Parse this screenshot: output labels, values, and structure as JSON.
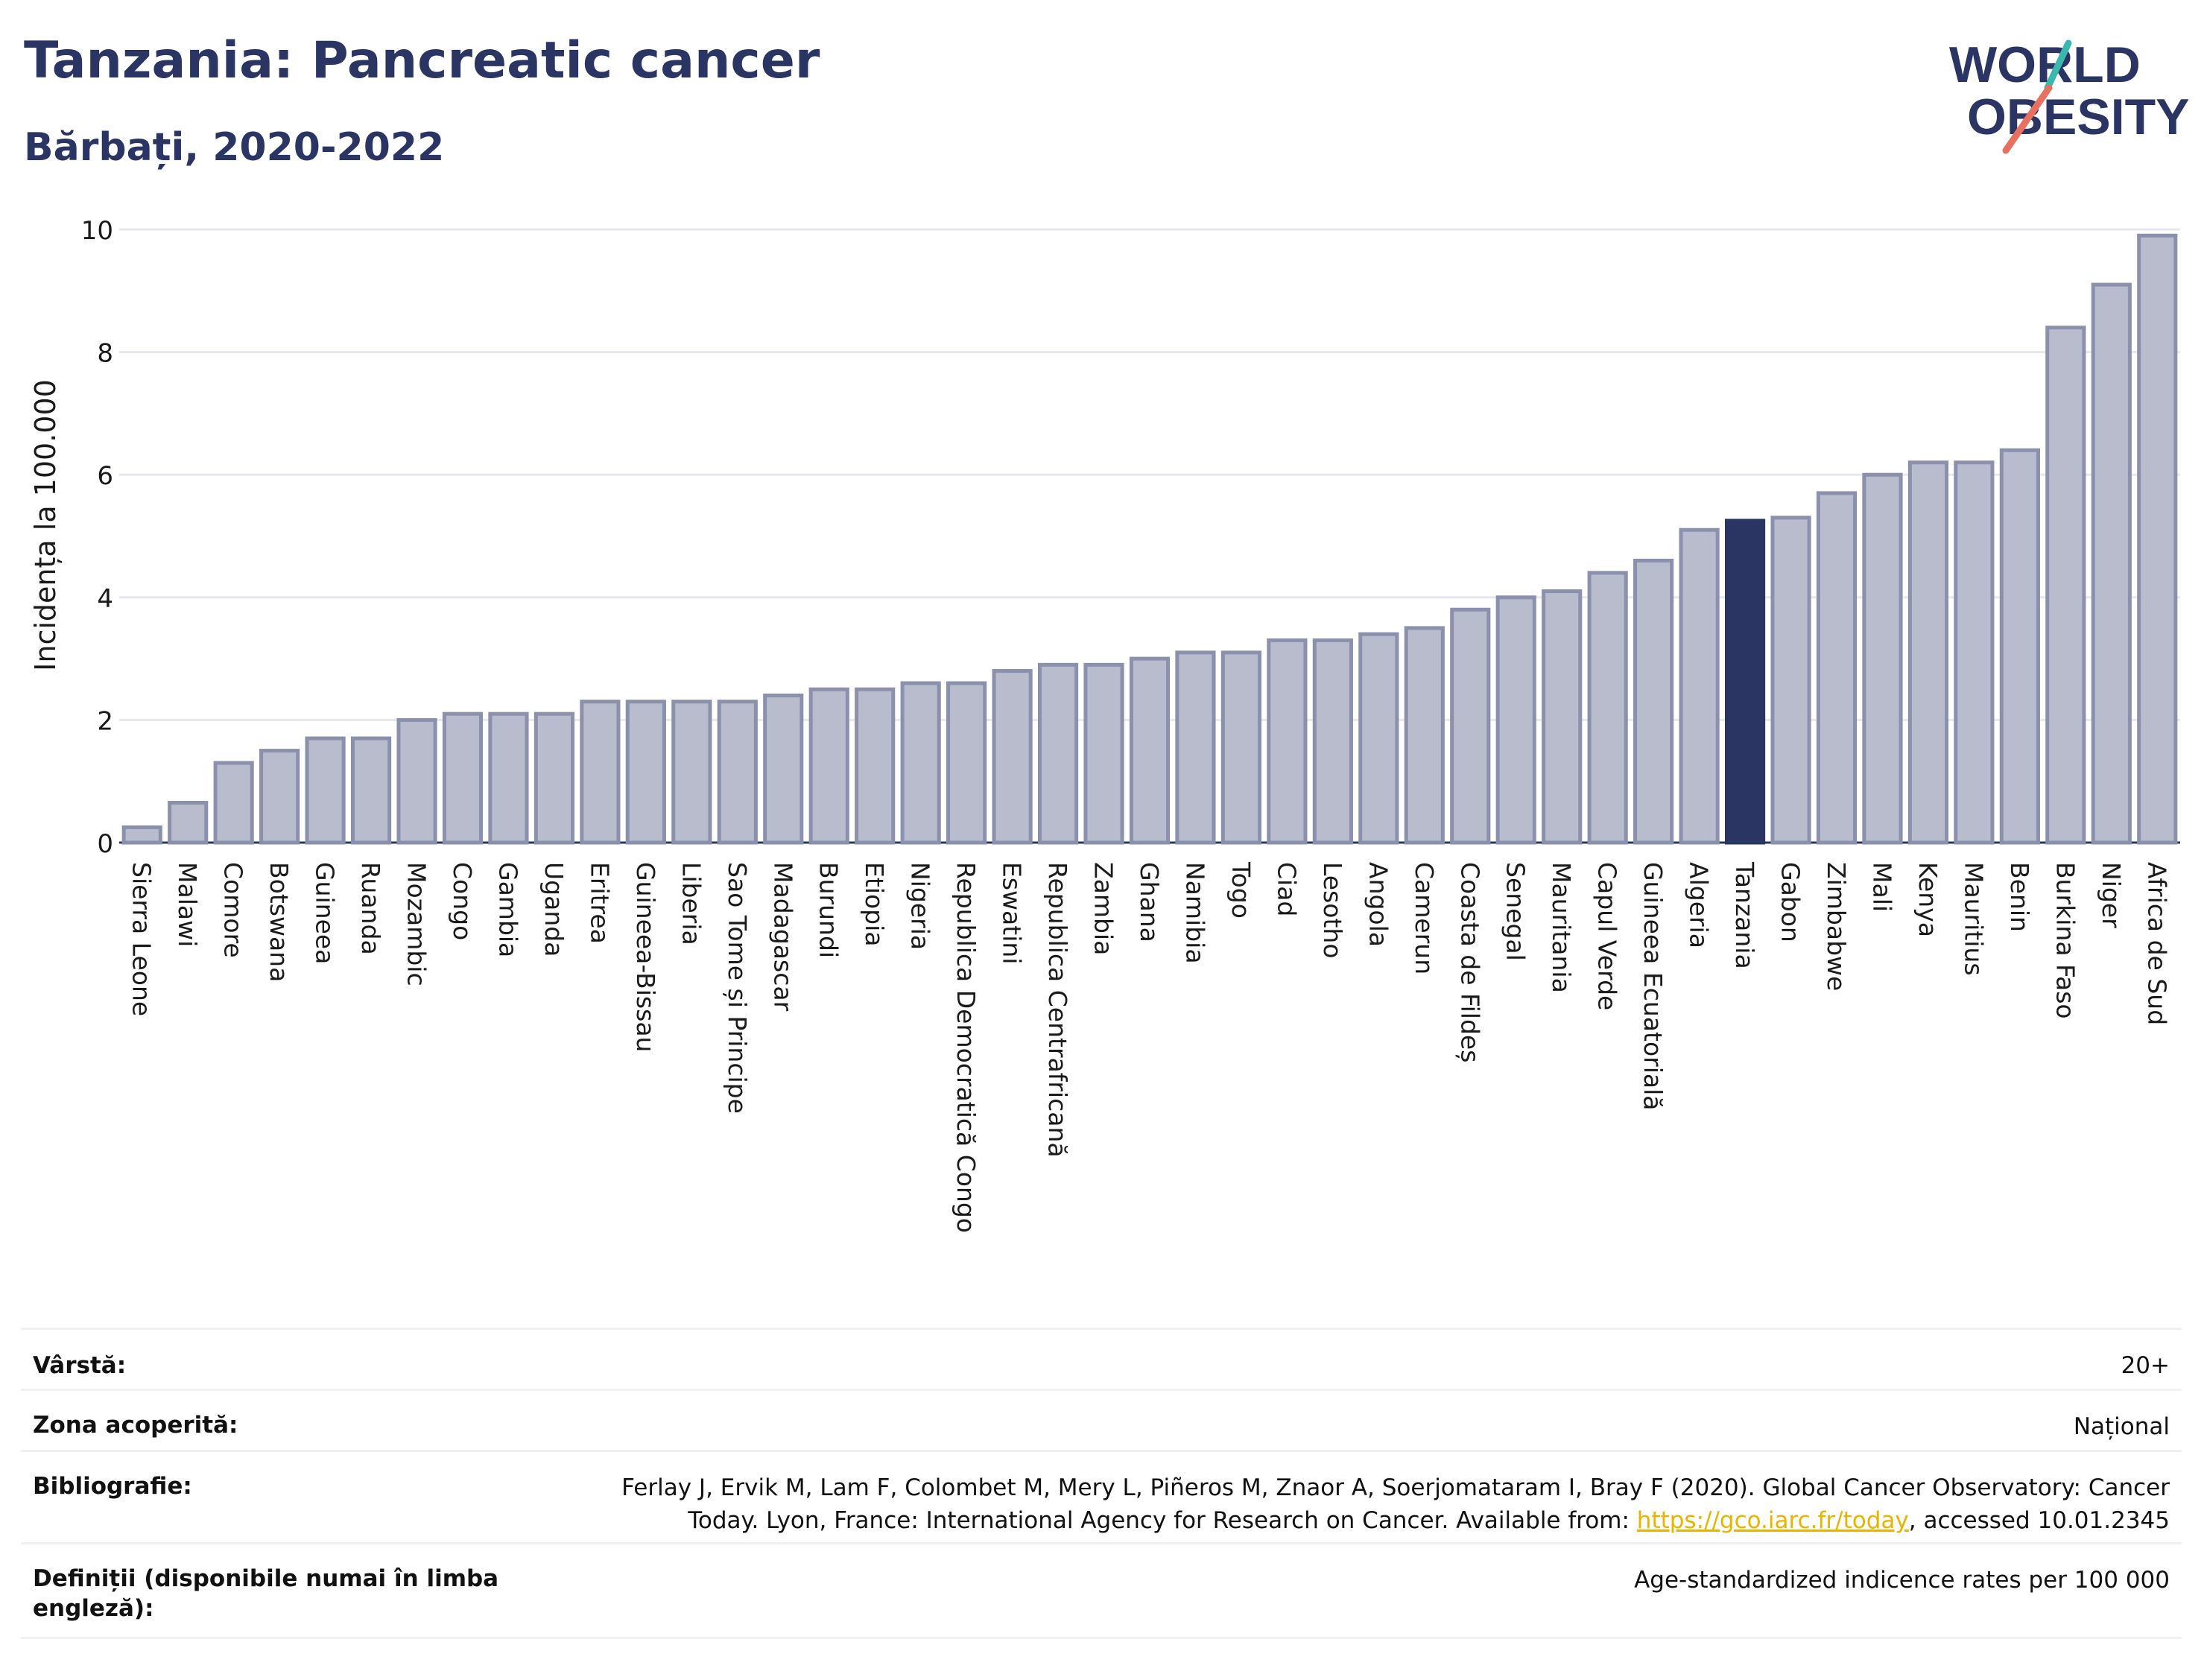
{
  "header": {
    "title": "Tanzania: Pancreatic cancer",
    "subtitle": "Bărbați, 2020-2022"
  },
  "logo": {
    "line1": "WORLD",
    "line2": "OBESITY"
  },
  "colors": {
    "bar": "#b9bccc",
    "bar_stroke": "#8b90ad",
    "highlight": "#2a3563",
    "grid": "#e6e8ee",
    "axis": "#2a3563",
    "logo_teal": "#3ab8b0",
    "logo_coral": "#e8705e"
  },
  "chart_data": {
    "type": "bar",
    "ylabel": "Incidența la 100.000",
    "ylim": [
      0,
      10
    ],
    "yticks": [
      "0",
      "2",
      "4",
      "6",
      "8",
      "10"
    ],
    "grid": true,
    "highlight": "Tanzania",
    "categories": [
      "Sierra Leone",
      "Malawi",
      "Comore",
      "Botswana",
      "Guineea",
      "Ruanda",
      "Mozambic",
      "Congo",
      "Gambia",
      "Uganda",
      "Eritrea",
      "Guineea-Bissau",
      "Liberia",
      "Sao Tome și Principe",
      "Madagascar",
      "Burundi",
      "Etiopia",
      "Nigeria",
      "Republica Democratică Congo",
      "Eswatini",
      "Republica Centrafricană",
      "Zambia",
      "Ghana",
      "Namibia",
      "Togo",
      "Ciad",
      "Lesotho",
      "Angola",
      "Camerun",
      "Coasta de Fildeș",
      "Senegal",
      "Mauritania",
      "Capul Verde",
      "Guineea Ecuatorială",
      "Algeria",
      "Tanzania",
      "Gabon",
      "Zimbabwe",
      "Mali",
      "Kenya",
      "Mauritius",
      "Benin",
      "Burkina Faso",
      "Niger",
      "Africa de Sud"
    ],
    "values": [
      0.25,
      0.65,
      1.3,
      1.5,
      1.7,
      1.7,
      2.0,
      2.1,
      2.1,
      2.1,
      2.3,
      2.3,
      2.3,
      2.3,
      2.4,
      2.5,
      2.5,
      2.6,
      2.6,
      2.8,
      2.9,
      2.9,
      3.0,
      3.1,
      3.1,
      3.3,
      3.3,
      3.4,
      3.5,
      3.8,
      4.0,
      4.1,
      4.4,
      4.6,
      5.1,
      5.25,
      5.3,
      5.7,
      6.0,
      6.2,
      6.2,
      6.4,
      8.4,
      9.1,
      9.9
    ]
  },
  "meta": {
    "age_label": "Vârstă:",
    "age_value": "20+",
    "area_label": "Zona acoperită:",
    "area_value": "Național",
    "biblio_label": "Bibliografie:",
    "biblio_line1": "Ferlay J, Ervik M, Lam F, Colombet M, Mery L, Piñeros M, Znaor A, Soerjomataram I, Bray F (2020). Global Cancer Observatory: Cancer",
    "biblio_line2_pre": "Today. Lyon, France: International Agency for Research on Cancer. Available from: ",
    "biblio_link": "https://gco.iarc.fr/today",
    "biblio_line2_post": ", accessed 10.01.2345",
    "def_label_1": "Definiții (disponibile numai în limba",
    "def_label_2": "engleză):",
    "def_value": "Age-standardized indicence rates per 100 000"
  }
}
